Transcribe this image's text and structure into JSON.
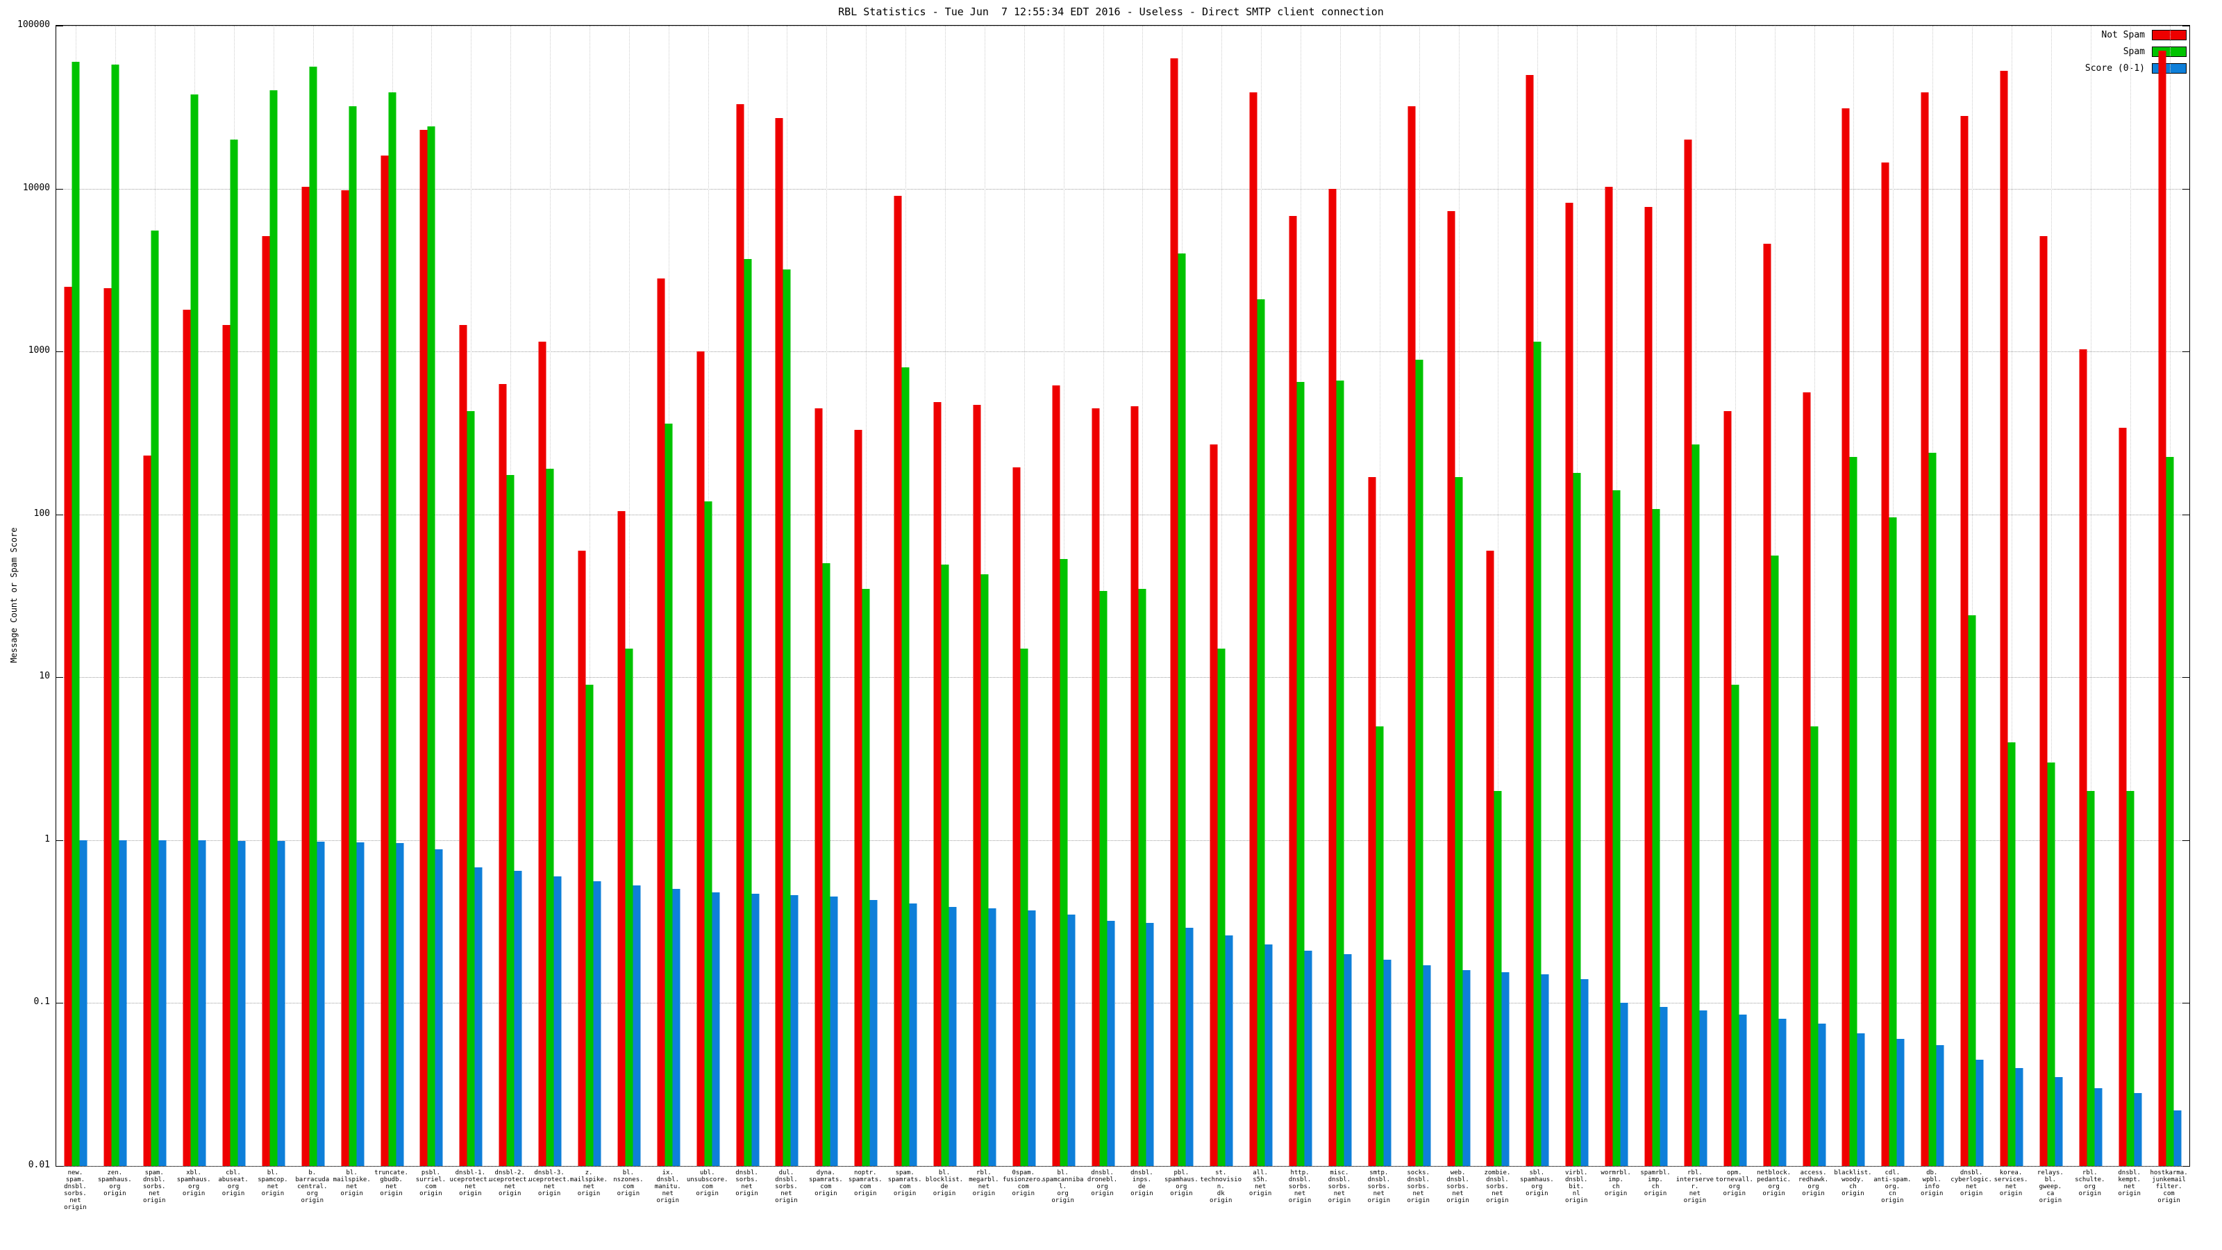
{
  "chart_data": {
    "type": "bar",
    "title": "RBL Statistics - Tue Jun  7 12:55:34 EDT 2016 - Useless - Direct SMTP client connection",
    "xlabel": "",
    "ylabel": "Message Count or Spam Score",
    "y_scale": "log",
    "ylim": [
      0.01,
      100000
    ],
    "y_ticks": [
      "100000",
      "10000",
      "1000",
      "100",
      "10",
      "1",
      "0.1",
      "0.01"
    ],
    "grid": true,
    "legend_position": "top-right",
    "colors": {
      "not_spam": "#ee0000",
      "spam": "#00c300",
      "score": "#0e7fd9"
    },
    "series": [
      {
        "name": "Not Spam",
        "color_key": "not_spam",
        "values": [
          2500,
          2450,
          230,
          1800,
          1450,
          5100,
          10300,
          9800,
          16000,
          23000,
          1450,
          630,
          1150,
          60,
          105,
          2800,
          1000,
          33000,
          27000,
          450,
          330,
          9000,
          490,
          470,
          195,
          620,
          450,
          460,
          63000,
          270,
          39000,
          6800,
          10000,
          170,
          32000,
          7300,
          60,
          50000,
          8200,
          10300,
          7700,
          20000,
          430,
          4600,
          560,
          31000,
          14500,
          39000,
          28000,
          53000,
          5100,
          1030,
          340,
          70000
        ]
      },
      {
        "name": "Spam",
        "color_key": "spam",
        "values": [
          60000,
          58000,
          5500,
          38000,
          20000,
          40000,
          56000,
          32000,
          39000,
          24000,
          430,
          175,
          190,
          9,
          15,
          360,
          120,
          3700,
          3200,
          50,
          35,
          800,
          49,
          43,
          15,
          53,
          34,
          35,
          4000,
          15,
          2100,
          650,
          660,
          5,
          890,
          170,
          2,
          1150,
          180,
          140,
          108,
          270,
          9,
          56,
          5,
          225,
          96,
          240,
          24,
          4,
          3,
          2,
          2,
          225
        ]
      },
      {
        "name": "Score (0-1)",
        "color_key": "score",
        "values": [
          1.0,
          1.0,
          1.0,
          1.0,
          0.99,
          0.99,
          0.98,
          0.97,
          0.96,
          0.88,
          0.68,
          0.65,
          0.6,
          0.56,
          0.53,
          0.5,
          0.48,
          0.47,
          0.46,
          0.45,
          0.43,
          0.41,
          0.39,
          0.38,
          0.37,
          0.35,
          0.32,
          0.31,
          0.29,
          0.26,
          0.23,
          0.21,
          0.2,
          0.185,
          0.17,
          0.16,
          0.155,
          0.15,
          0.14,
          0.1,
          0.095,
          0.09,
          0.085,
          0.08,
          0.075,
          0.065,
          0.06,
          0.055,
          0.045,
          0.04,
          0.035,
          0.03,
          0.028,
          0.022
        ]
      }
    ],
    "categories": [
      [
        "new.",
        "spam.",
        "dnsbl.",
        "sorbs.",
        "net",
        "origin"
      ],
      [
        "zen.",
        "spamhaus.",
        "org",
        "origin"
      ],
      [
        "spam.",
        "dnsbl.",
        "sorbs.",
        "net",
        "origin"
      ],
      [
        "xbl.",
        "spamhaus.",
        "org",
        "origin"
      ],
      [
        "cbl.",
        "abuseat.",
        "org",
        "origin"
      ],
      [
        "bl.",
        "spamcop.",
        "net",
        "origin"
      ],
      [
        "b.",
        "barracuda",
        "central.",
        "org",
        "origin"
      ],
      [
        "bl.",
        "mailspike.",
        "net",
        "origin"
      ],
      [
        "truncate.",
        "gbudb.",
        "net",
        "origin"
      ],
      [
        "psbl.",
        "surriel.",
        "com",
        "origin"
      ],
      [
        "dnsbl-1.",
        "uceprotect.",
        "net",
        "origin"
      ],
      [
        "dnsbl-2.",
        "uceprotect.",
        "net",
        "origin"
      ],
      [
        "dnsbl-3.",
        "uceprotect.",
        "net",
        "origin"
      ],
      [
        "z.",
        "mailspike.",
        "net",
        "origin"
      ],
      [
        "bl.",
        "nszones.",
        "com",
        "origin"
      ],
      [
        "ix.",
        "dnsbl.",
        "manitu.",
        "net",
        "origin"
      ],
      [
        "ubl.",
        "unsubscore.",
        "com",
        "origin"
      ],
      [
        "dnsbl.",
        "sorbs.",
        "net",
        "origin"
      ],
      [
        "dul.",
        "dnsbl.",
        "sorbs.",
        "net",
        "origin"
      ],
      [
        "dyna.",
        "spamrats.",
        "com",
        "origin"
      ],
      [
        "noptr.",
        "spamrats.",
        "com",
        "origin"
      ],
      [
        "spam.",
        "spamrats.",
        "com",
        "origin"
      ],
      [
        "bl.",
        "blocklist.",
        "de",
        "origin"
      ],
      [
        "rbl.",
        "megarbl.",
        "net",
        "origin"
      ],
      [
        "0spam.",
        "fusionzero.",
        "com",
        "origin"
      ],
      [
        "bl.",
        "spamcannibal.",
        "org",
        "origin"
      ],
      [
        "dnsbl.",
        "dronebl.",
        "org",
        "origin"
      ],
      [
        "dnsbl.",
        "inps.",
        "de",
        "origin"
      ],
      [
        "pbl.",
        "spamhaus.",
        "org",
        "origin"
      ],
      [
        "st.",
        "technovision.",
        "dk",
        "origin"
      ],
      [
        "all.",
        "s5h.",
        "net",
        "origin"
      ],
      [
        "http.",
        "dnsbl.",
        "sorbs.",
        "net",
        "origin"
      ],
      [
        "misc.",
        "dnsbl.",
        "sorbs.",
        "net",
        "origin"
      ],
      [
        "smtp.",
        "dnsbl.",
        "sorbs.",
        "net",
        "origin"
      ],
      [
        "socks.",
        "dnsbl.",
        "sorbs.",
        "net",
        "origin"
      ],
      [
        "web.",
        "dnsbl.",
        "sorbs.",
        "net",
        "origin"
      ],
      [
        "zombie.",
        "dnsbl.",
        "sorbs.",
        "net",
        "origin"
      ],
      [
        "sbl.",
        "spamhaus.",
        "org",
        "origin"
      ],
      [
        "virbl.",
        "dnsbl.",
        "bit.",
        "nl",
        "origin"
      ],
      [
        "wormrbl.",
        "imp.",
        "ch",
        "origin"
      ],
      [
        "spamrbl.",
        "imp.",
        "ch",
        "origin"
      ],
      [
        "rbl.",
        "interserver.",
        "net",
        "origin"
      ],
      [
        "opm.",
        "tornevall.",
        "org",
        "origin"
      ],
      [
        "netblock.",
        "pedantic.",
        "org",
        "origin"
      ],
      [
        "access.",
        "redhawk.",
        "org",
        "origin"
      ],
      [
        "blacklist.",
        "woody.",
        "ch",
        "origin"
      ],
      [
        "cdl.",
        "anti-spam.",
        "org.",
        "cn",
        "origin"
      ],
      [
        "db.",
        "wpbl.",
        "info",
        "origin"
      ],
      [
        "dnsbl.",
        "cyberlogic.",
        "net",
        "origin"
      ],
      [
        "korea.",
        "services.",
        "net",
        "origin"
      ],
      [
        "relays.",
        "bl.",
        "gweep.",
        "ca",
        "origin"
      ],
      [
        "rbl.",
        "schulte.",
        "org",
        "origin"
      ],
      [
        "dnsbl.",
        "kempt.",
        "net",
        "origin"
      ],
      [
        "hostkarma.",
        "junkemail",
        "filter.",
        "com",
        "origin"
      ]
    ]
  }
}
